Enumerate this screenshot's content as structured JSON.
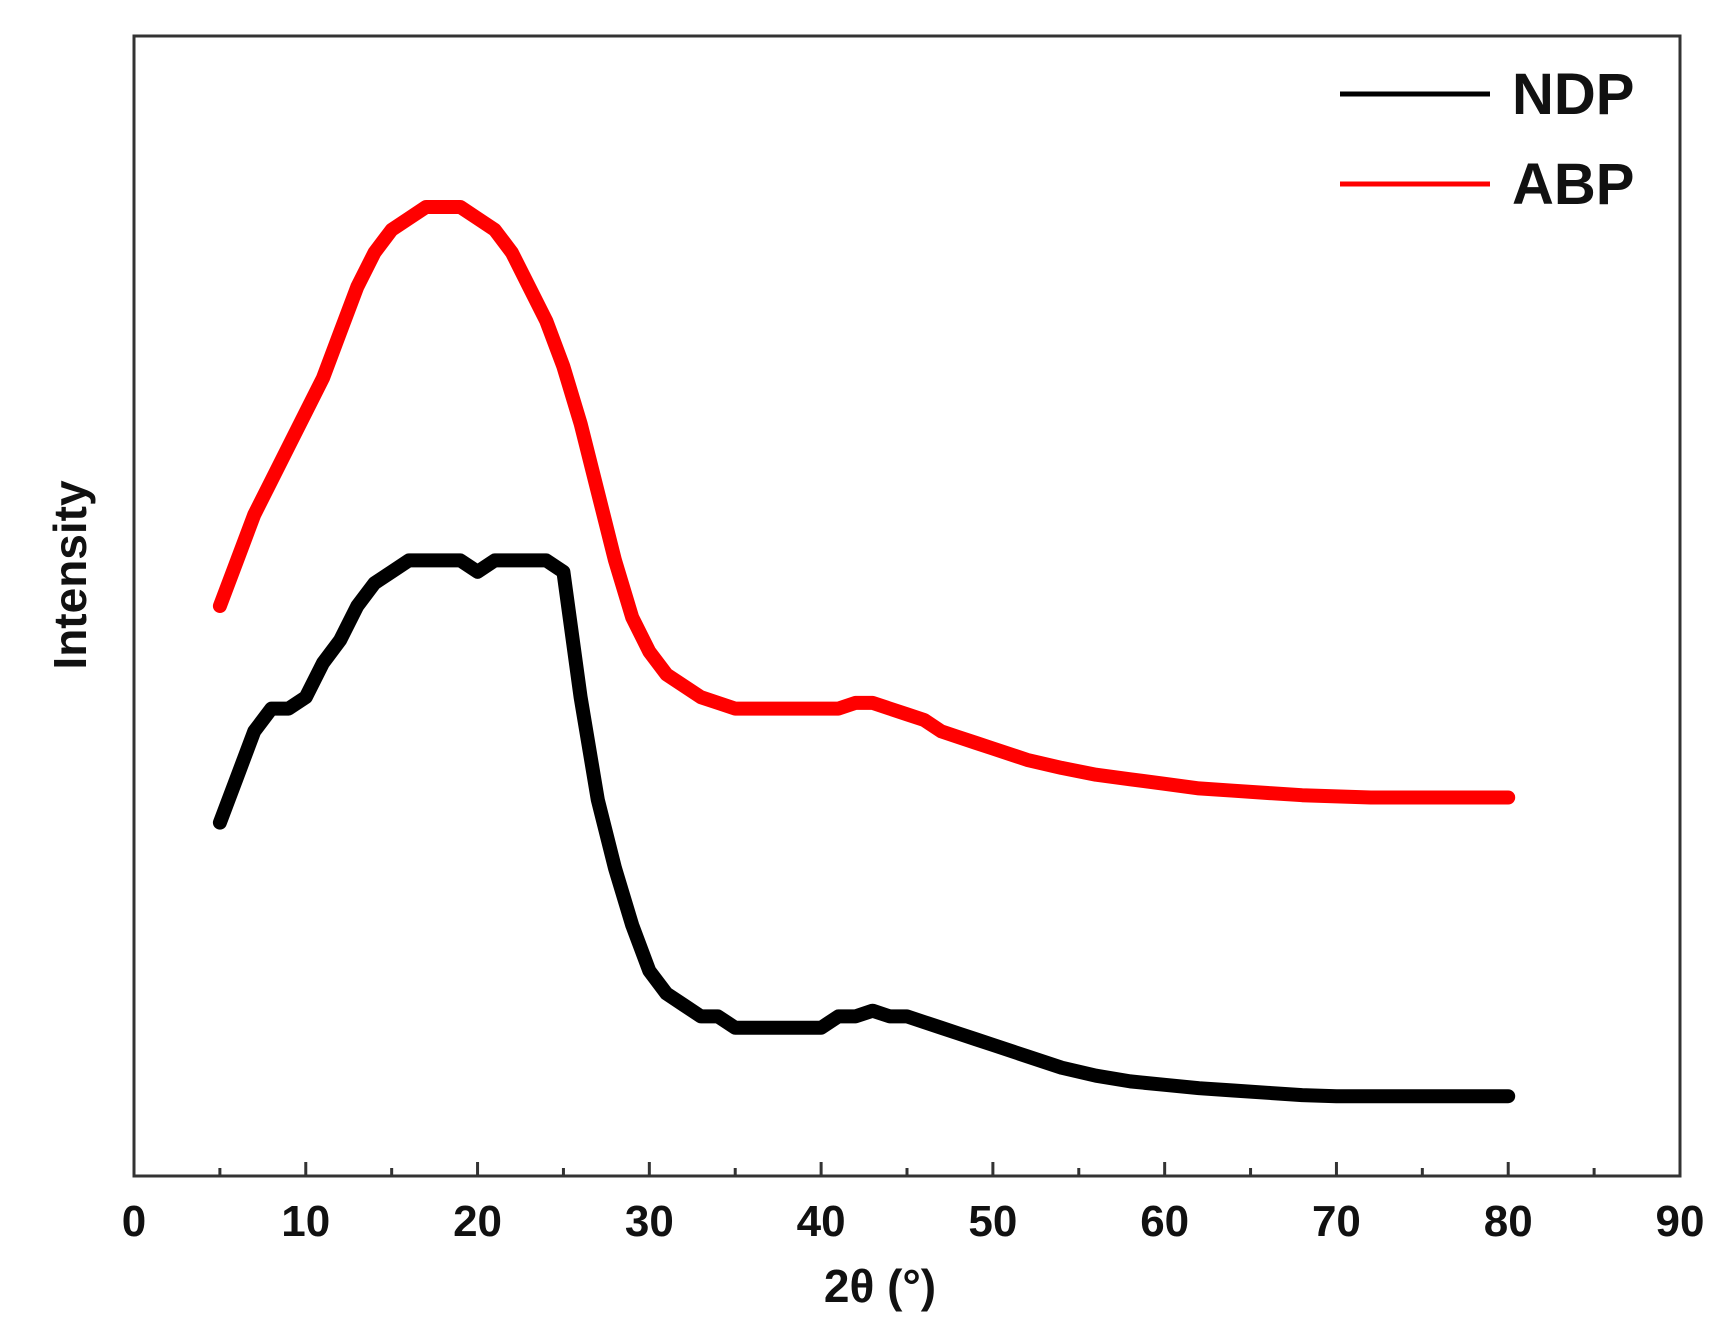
{
  "chart_data": {
    "type": "line",
    "title": "",
    "xlabel": "2θ (°)",
    "ylabel": "Intensity",
    "xlim": [
      0,
      90
    ],
    "ylim": [
      0,
      100
    ],
    "x_ticks": [
      0,
      10,
      20,
      30,
      40,
      50,
      60,
      70,
      80,
      90
    ],
    "x_tick_labels": [
      "0",
      "10",
      "20",
      "30",
      "40",
      "50",
      "60",
      "70",
      "80",
      "90"
    ],
    "y_ticks_shown": false,
    "grid": false,
    "legend": {
      "position": "top-right"
    },
    "series": [
      {
        "name": "NDP",
        "color": "#000000",
        "x": [
          5,
          6,
          7,
          8,
          9,
          10,
          11,
          12,
          13,
          14,
          15,
          16,
          17,
          18,
          19,
          20,
          21,
          22,
          23,
          24,
          25,
          26,
          27,
          28,
          29,
          30,
          31,
          32,
          33,
          34,
          35,
          36,
          37,
          38,
          39,
          40,
          41,
          42,
          43,
          44,
          45,
          46,
          47,
          48,
          49,
          50,
          52,
          54,
          56,
          58,
          60,
          62,
          64,
          66,
          68,
          70,
          72,
          74,
          76,
          78,
          80
        ],
        "values": [
          31,
          35,
          39,
          41,
          41,
          42,
          45,
          47,
          50,
          52,
          53,
          54,
          54,
          54,
          54,
          53,
          54,
          54,
          54,
          54,
          53,
          42,
          33,
          27,
          22,
          18,
          16,
          15,
          14,
          14,
          13,
          13,
          13,
          13,
          13,
          13,
          14,
          14,
          14.5,
          14,
          14,
          13.5,
          13,
          12.5,
          12,
          11.5,
          10.5,
          9.5,
          8.8,
          8.3,
          8,
          7.7,
          7.5,
          7.3,
          7.1,
          7,
          7,
          7,
          7,
          7,
          7
        ]
      },
      {
        "name": "ABP",
        "color": "#ff0000",
        "x": [
          5,
          6,
          7,
          8,
          9,
          10,
          11,
          12,
          13,
          14,
          15,
          16,
          17,
          18,
          19,
          20,
          21,
          22,
          23,
          24,
          25,
          26,
          27,
          28,
          29,
          30,
          31,
          32,
          33,
          34,
          35,
          36,
          37,
          38,
          39,
          40,
          41,
          42,
          43,
          44,
          45,
          46,
          47,
          48,
          49,
          50,
          52,
          54,
          56,
          58,
          60,
          62,
          64,
          66,
          68,
          70,
          72,
          74,
          76,
          78,
          80
        ],
        "values": [
          50,
          54,
          58,
          61,
          64,
          67,
          70,
          74,
          78,
          81,
          83,
          84,
          85,
          85,
          85,
          84,
          83,
          81,
          78,
          75,
          71,
          66,
          60,
          54,
          49,
          46,
          44,
          43,
          42,
          41.5,
          41,
          41,
          41,
          41,
          41,
          41,
          41,
          41.5,
          41.5,
          41,
          40.5,
          40,
          39,
          38.5,
          38,
          37.5,
          36.5,
          35.8,
          35.2,
          34.8,
          34.4,
          34,
          33.8,
          33.6,
          33.4,
          33.3,
          33.2,
          33.2,
          33.2,
          33.2,
          33.2
        ]
      }
    ]
  }
}
